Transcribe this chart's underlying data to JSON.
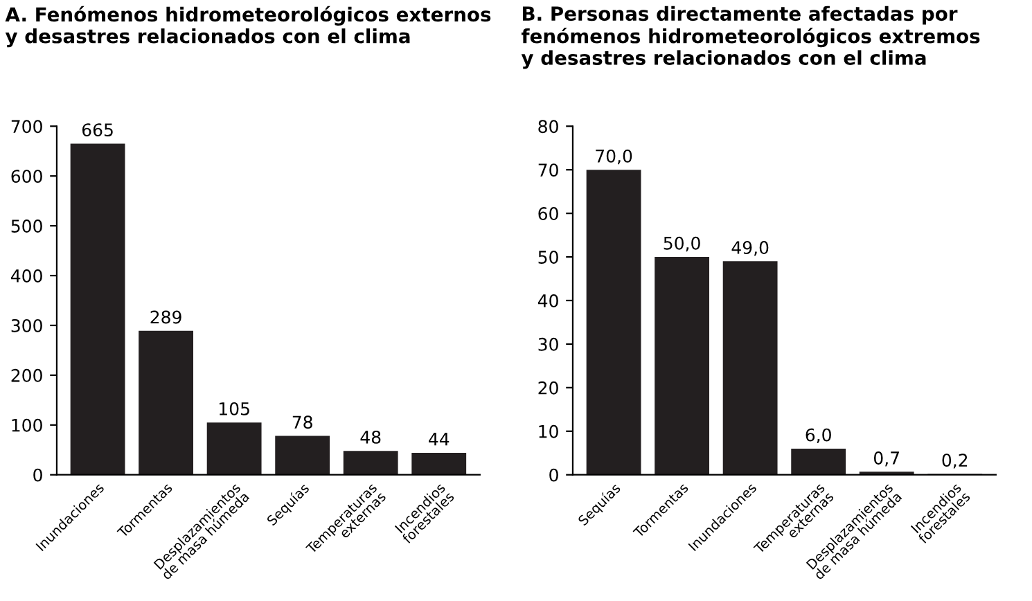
{
  "chart_data": [
    {
      "type": "bar",
      "title": "A. Fenómenos hidrometeorológicos externos\ny desastres relacionados con el clima",
      "categories": [
        "Inundaciones",
        "Tormentas",
        "Desplazamientos\nde masa húmeda",
        "Sequías",
        "Temperaturas\nexternas",
        "Incendios\nforestales"
      ],
      "values": [
        665,
        289,
        105,
        78,
        48,
        44
      ],
      "color": "#231f20",
      "data_labels": true,
      "ylim": [
        0,
        700
      ],
      "yticks": [
        0,
        100,
        200,
        300,
        400,
        500,
        600,
        700
      ],
      "grid": false,
      "legend": false
    },
    {
      "type": "bar",
      "title": "B. Personas directamente afectadas por\nfenómenos hidrometeorológicos extremos\ny desastres relacionados con el clima",
      "categories": [
        "Sequías",
        "Tormentas",
        "Inundaciones",
        "Temperaturas\nexternas",
        "Desplazamientos\nde masa húmeda",
        "Incendios\nforestales"
      ],
      "values": [
        70.0,
        50.0,
        49.0,
        6.0,
        0.7,
        0.2
      ],
      "value_labels": [
        "70,0",
        "50,0",
        "49,0",
        "6,0",
        "0,7",
        "0,2"
      ],
      "color": "#231f20",
      "ylim": [
        0,
        80
      ],
      "yticks": [
        0,
        10,
        20,
        30,
        40,
        50,
        60,
        70,
        80
      ],
      "grid": false,
      "legend": false
    }
  ]
}
